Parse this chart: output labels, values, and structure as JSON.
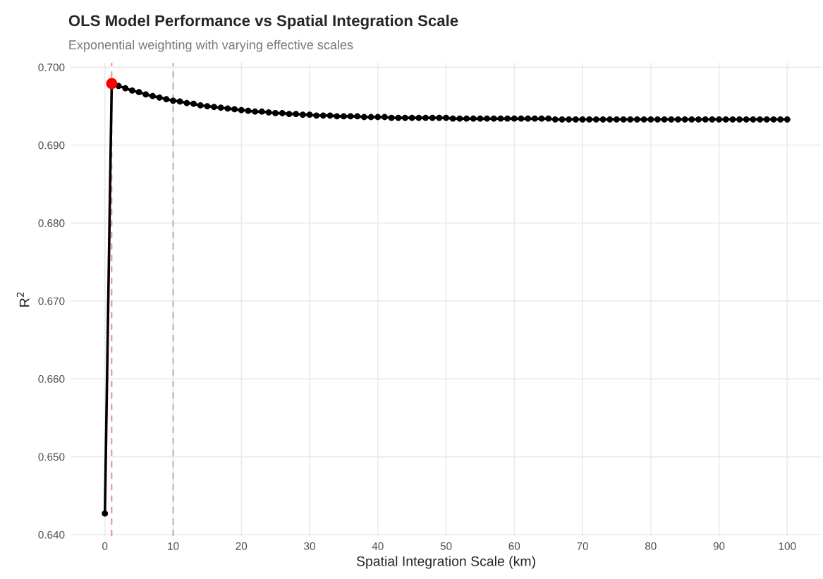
{
  "chart_data": {
    "type": "line",
    "title": "OLS Model Performance vs Spatial Integration Scale",
    "subtitle": "Exponential weighting with varying effective scales",
    "xlabel": "Spatial Integration Scale (km)",
    "ylabel": "R$^{2}$",
    "x": [
      0,
      1,
      2,
      3,
      4,
      5,
      6,
      7,
      8,
      9,
      10,
      11,
      12,
      13,
      14,
      15,
      16,
      17,
      18,
      19,
      20,
      21,
      22,
      23,
      24,
      25,
      26,
      27,
      28,
      29,
      30,
      31,
      32,
      33,
      34,
      35,
      36,
      37,
      38,
      39,
      40,
      41,
      42,
      43,
      44,
      45,
      46,
      47,
      48,
      49,
      50,
      51,
      52,
      53,
      54,
      55,
      56,
      57,
      58,
      59,
      60,
      61,
      62,
      63,
      64,
      65,
      66,
      67,
      68,
      69,
      70,
      71,
      72,
      73,
      74,
      75,
      76,
      77,
      78,
      79,
      80,
      81,
      82,
      83,
      84,
      85,
      86,
      87,
      88,
      89,
      90,
      91,
      92,
      93,
      94,
      95,
      96,
      97,
      98,
      99,
      100
    ],
    "series": [
      {
        "color": "#000000",
        "marker": "circle",
        "values": [
          0.6427,
          0.6979,
          0.6976,
          0.6973,
          0.697,
          0.6968,
          0.6965,
          0.6963,
          0.6961,
          0.6959,
          0.6957,
          0.6956,
          0.6954,
          0.6953,
          0.6951,
          0.695,
          0.6949,
          0.6948,
          0.6947,
          0.6946,
          0.6945,
          0.6944,
          0.6943,
          0.6943,
          0.6942,
          0.6941,
          0.6941,
          0.694,
          0.694,
          0.6939,
          0.6939,
          0.6938,
          0.6938,
          0.6938,
          0.6937,
          0.6937,
          0.6937,
          0.6937,
          0.6936,
          0.6936,
          0.6936,
          0.6936,
          0.6935,
          0.6935,
          0.6935,
          0.6935,
          0.6935,
          0.6935,
          0.6935,
          0.6935,
          0.6935,
          0.6934,
          0.6934,
          0.6934,
          0.6934,
          0.6934,
          0.6934,
          0.6934,
          0.6934,
          0.6934,
          0.6934,
          0.6934,
          0.6934,
          0.6934,
          0.6934,
          0.6934,
          0.6933,
          0.6933,
          0.6933,
          0.6933,
          0.6933,
          0.6933,
          0.6933,
          0.6933,
          0.6933,
          0.6933,
          0.6933,
          0.6933,
          0.6933,
          0.6933,
          0.6933,
          0.6933,
          0.6933,
          0.6933,
          0.6933,
          0.6933,
          0.6933,
          0.6933,
          0.6933,
          0.6933,
          0.6933,
          0.6933,
          0.6933,
          0.6933,
          0.6933,
          0.6933,
          0.6933,
          0.6933,
          0.6933,
          0.6933,
          0.6933
        ]
      },
      {
        "type": "scatter",
        "color": "#ff0000",
        "x": [
          1
        ],
        "values": [
          0.6979
        ]
      }
    ],
    "ref_lines": [
      {
        "axis": "x",
        "value": 1,
        "color": "#f08080",
        "line_style": "dashed"
      },
      {
        "axis": "x",
        "value": 10,
        "color": "#aaaaaa",
        "line_style": "dashed"
      }
    ],
    "xlim": [
      -5,
      105
    ],
    "xticks": [
      0,
      10,
      20,
      30,
      40,
      50,
      60,
      70,
      80,
      90,
      100
    ],
    "ylim": [
      0.6398,
      0.7006
    ],
    "yticks": [
      {
        "value": 0.64,
        "label": "0.640"
      },
      {
        "value": 0.65,
        "label": "0.650"
      },
      {
        "value": 0.66,
        "label": "0.660"
      },
      {
        "value": 0.67,
        "label": "0.670"
      },
      {
        "value": 0.68,
        "label": "0.680"
      },
      {
        "value": 0.69,
        "label": "0.690"
      },
      {
        "value": 0.7,
        "label": "0.700"
      }
    ],
    "grid": true,
    "legend": false
  }
}
